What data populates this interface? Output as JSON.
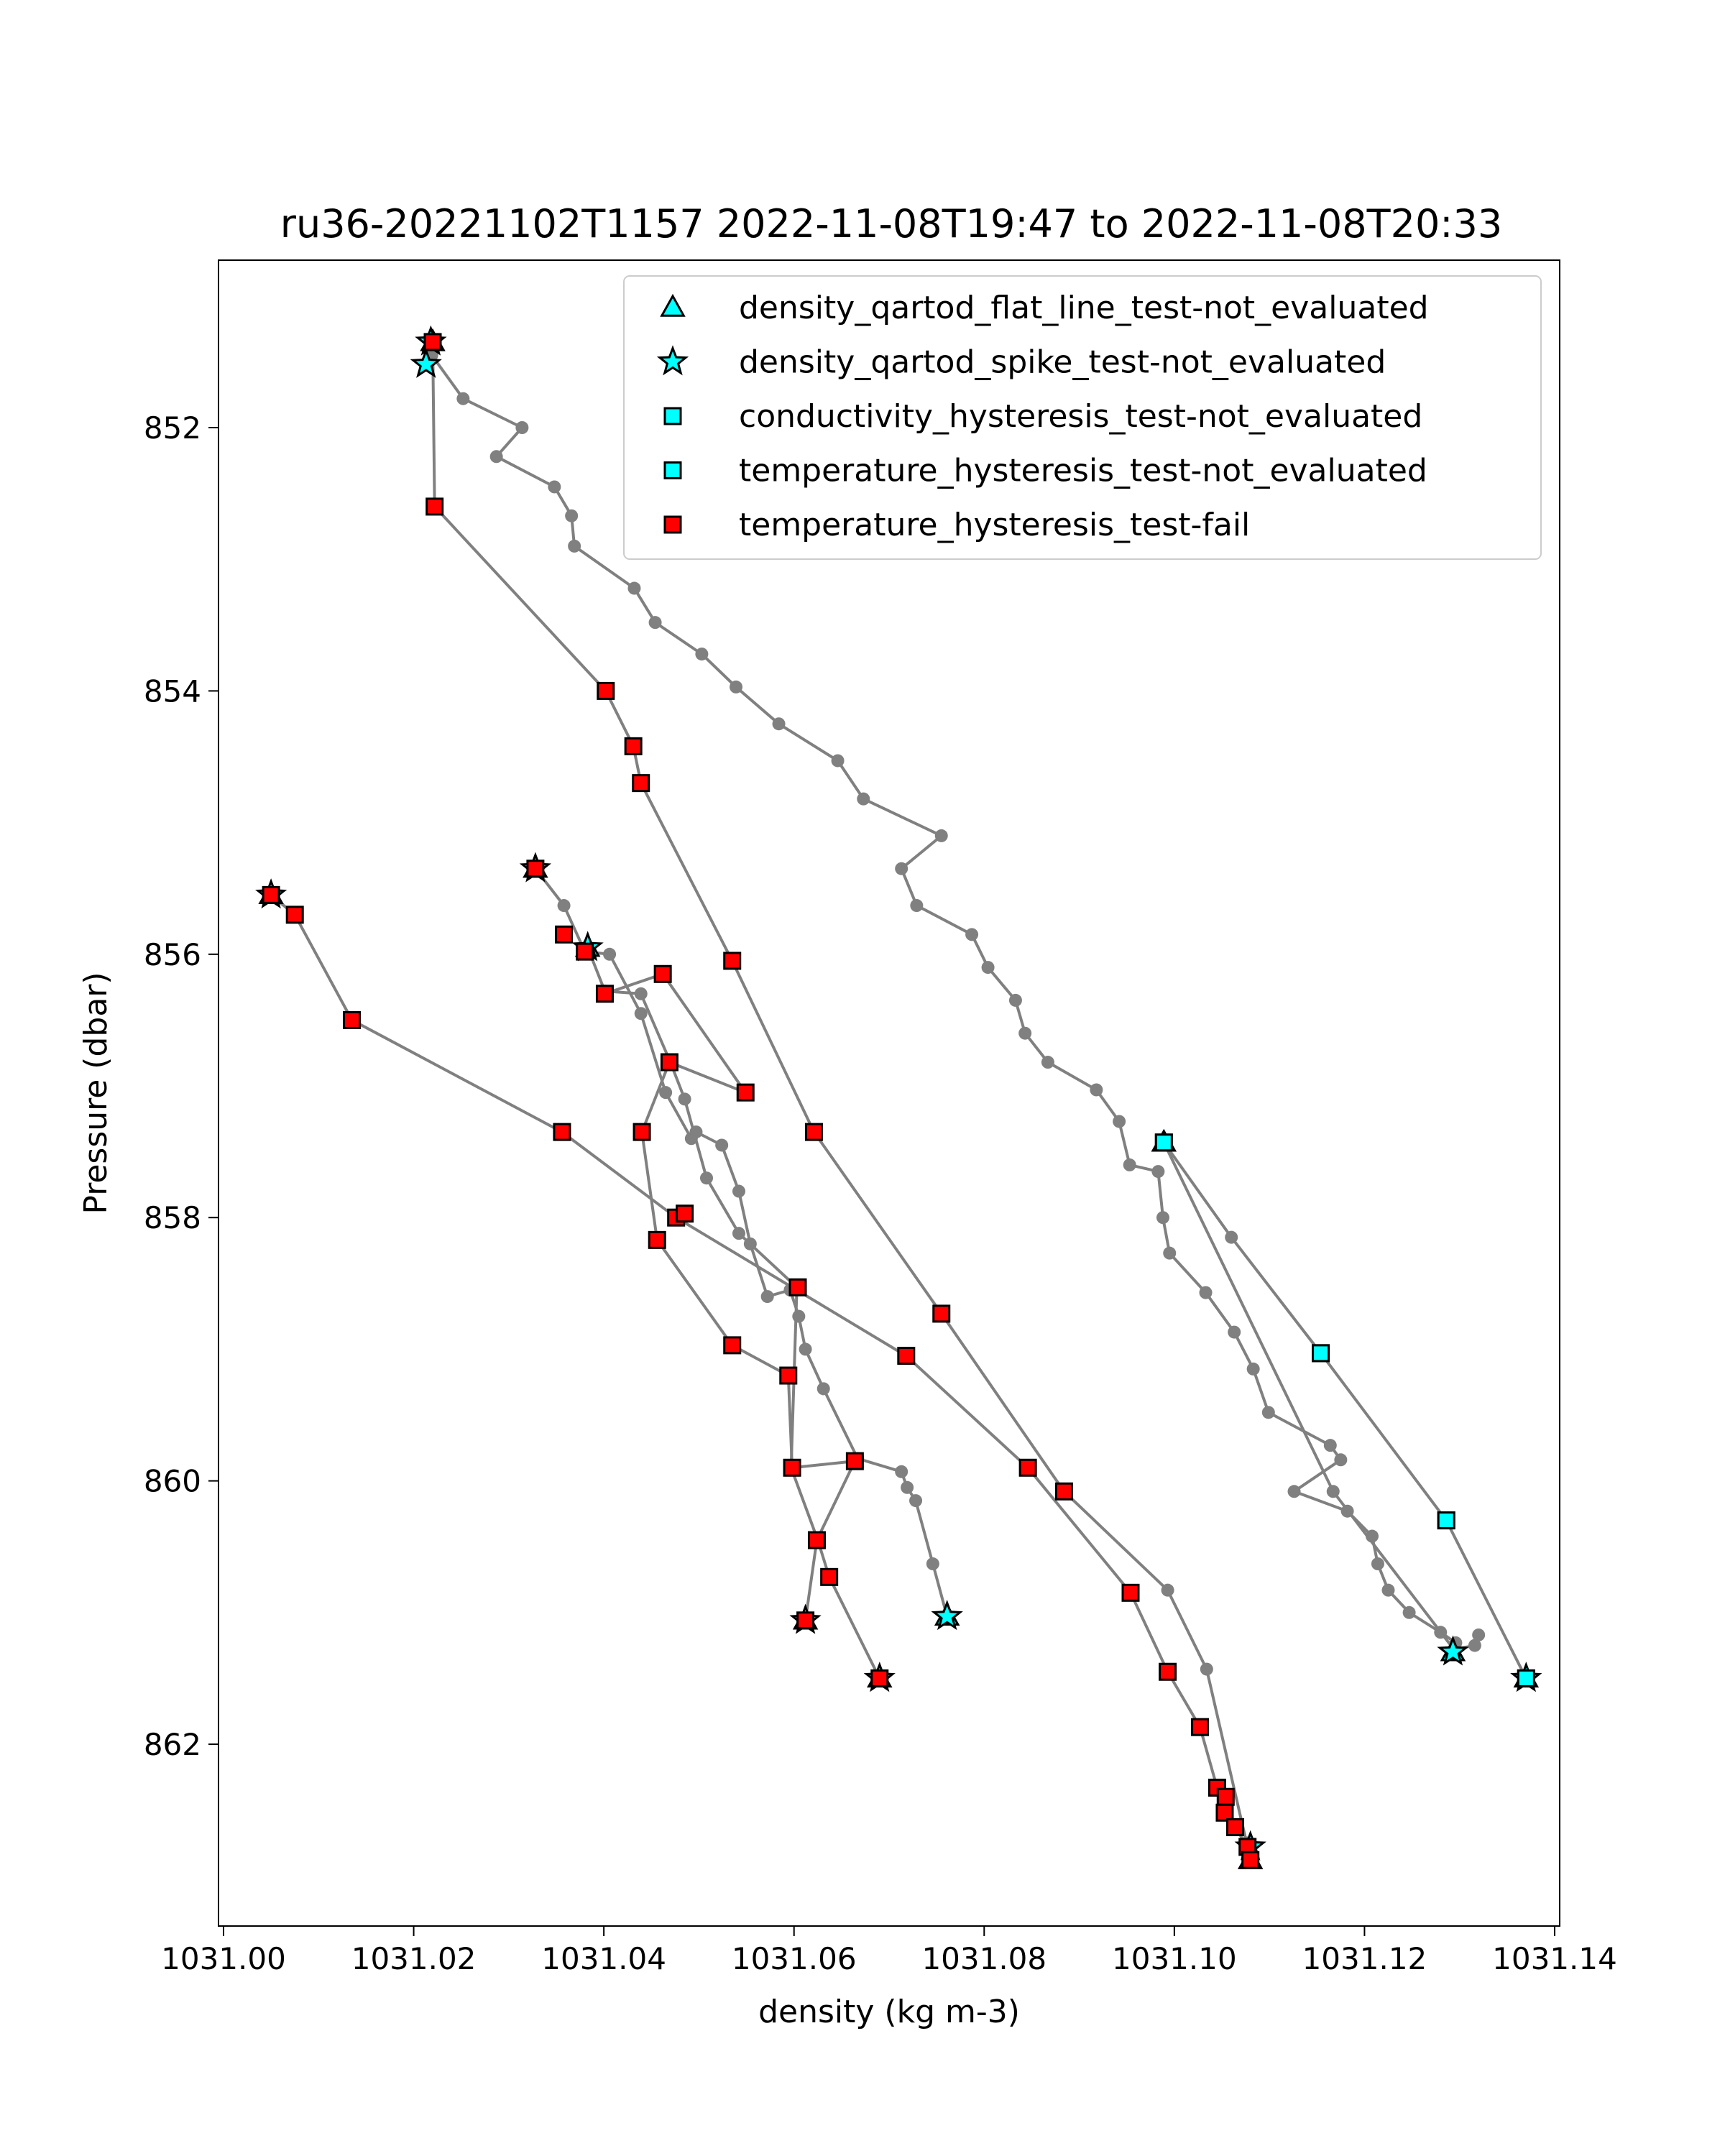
{
  "chart_data": {
    "type": "scatter",
    "title": "ru36-20221102T1157 2022-11-08T19:47 to 2022-11-08T20:33",
    "xlabel": "density (kg m-3)",
    "ylabel": "Pressure (dbar)",
    "xlim": [
      1031.0,
      1031.145
    ],
    "ylim": [
      863.5,
      850.7
    ],
    "y_inverted": true,
    "grid": false,
    "legend_placement": "top-right",
    "x_ticks": [
      {
        "value": 1031.0,
        "label": "1031.00"
      },
      {
        "value": 1031.02,
        "label": "1031.02"
      },
      {
        "value": 1031.04,
        "label": "1031.04"
      },
      {
        "value": 1031.06,
        "label": "1031.06"
      },
      {
        "value": 1031.08,
        "label": "1031.08"
      },
      {
        "value": 1031.1,
        "label": "1031.10"
      },
      {
        "value": 1031.12,
        "label": "1031.12"
      },
      {
        "value": 1031.14,
        "label": "1031.14"
      }
    ],
    "y_ticks": [
      {
        "value": 852,
        "label": "852"
      },
      {
        "value": 854,
        "label": "854"
      },
      {
        "value": 856,
        "label": "856"
      },
      {
        "value": 858,
        "label": "858"
      },
      {
        "value": 860,
        "label": "860"
      },
      {
        "value": 862,
        "label": "862"
      }
    ],
    "profile_line_color": "#808080",
    "profiles": [
      {
        "x": [
          1031.0761,
          1031.0746,
          1031.0728,
          1031.0719,
          1031.0713,
          1031.0667,
          1031.0631,
          1031.0612,
          1031.0605,
          1031.0596,
          1031.0572,
          1031.0554,
          1031.0542,
          1031.0524,
          1031.0497,
          1031.0492,
          1031.0465,
          1031.0439,
          1031.0406,
          1031.038,
          1031.0358,
          1031.0328
        ],
        "y": [
          861.03,
          860.63,
          860.15,
          860.05,
          859.93,
          859.83,
          859.3,
          859.0,
          858.75,
          858.55,
          858.6,
          858.2,
          857.8,
          857.45,
          857.35,
          857.4,
          857.05,
          856.45,
          856.0,
          855.98,
          855.63,
          855.35
        ]
      },
      {
        "x": [
          1031.069,
          1031.0637,
          1031.0625,
          1031.0597,
          1031.0603,
          1031.0542,
          1031.0508,
          1031.0485,
          1031.047,
          1031.0439,
          1031.0401,
          1031.0383
        ],
        "y": [
          861.5,
          860.73,
          860.45,
          859.9,
          858.53,
          858.12,
          857.7,
          857.1,
          856.82,
          856.3,
          856.28,
          855.95
        ]
      },
      {
        "x": [
          1031.0612,
          1031.0624,
          1031.0664,
          1031.0598,
          1031.0594,
          1031.0535,
          1031.0456,
          1031.044,
          1031.0469,
          1031.0549,
          1031.0462,
          1031.0401
        ],
        "y": [
          861.06,
          860.45,
          859.85,
          859.9,
          859.2,
          858.97,
          858.17,
          857.35,
          856.82,
          857.05,
          856.15,
          856.3
        ]
      },
      {
        "x": [
          1031.005,
          1031.0075,
          1031.0135,
          1031.0356,
          1031.0476,
          1031.0718,
          1031.0846,
          1031.0954,
          1031.0993,
          1031.1027,
          1031.1045,
          1031.1054,
          1031.1053,
          1031.1064,
          1031.1077,
          1031.108,
          1031.108
        ],
        "y": [
          855.55,
          855.7,
          856.5,
          857.35,
          858.0,
          859.05,
          859.9,
          860.85,
          861.45,
          861.87,
          862.33,
          862.4,
          862.52,
          862.63,
          862.78,
          862.83,
          862.88
        ]
      },
      {
        "x": [
          1031.0218,
          1031.0213,
          1031.0219,
          1031.0252,
          1031.0314,
          1031.0287,
          1031.0348,
          1031.0366,
          1031.0369,
          1031.0432,
          1031.0454,
          1031.0503,
          1031.0539,
          1031.0584,
          1031.0646,
          1031.0673,
          1031.0755,
          1031.0713,
          1031.0729,
          1031.0787,
          1031.0804,
          1031.0833,
          1031.0843,
          1031.0867,
          1031.0918,
          1031.0942,
          1031.0953,
          1031.0983,
          1031.0988,
          1031.0995,
          1031.1033,
          1031.1063,
          1031.1083,
          1031.1099,
          1031.1164,
          1031.1175,
          1031.1126,
          1031.1182,
          1031.1208,
          1031.1214,
          1031.1225,
          1031.1247,
          1031.128,
          1031.1296,
          1031.1293
        ],
        "y": [
          851.35,
          851.52,
          851.45,
          851.78,
          852.0,
          852.22,
          852.45,
          852.67,
          852.9,
          853.22,
          853.48,
          853.72,
          853.97,
          854.25,
          854.53,
          854.82,
          855.1,
          855.35,
          855.63,
          855.85,
          856.1,
          856.35,
          856.6,
          856.82,
          857.03,
          857.27,
          857.6,
          857.65,
          858.0,
          858.27,
          858.57,
          858.87,
          859.15,
          859.48,
          859.73,
          859.84,
          860.08,
          860.23,
          860.42,
          860.63,
          860.83,
          861.0,
          861.15,
          861.23,
          861.3
        ]
      },
      {
        "x": [
          1031.0222,
          1031.0402,
          1031.0431,
          1031.0439,
          1031.0535,
          1031.0621,
          1031.0755,
          1031.0884,
          1031.0993,
          1031.1034,
          1031.1076,
          1031.108
        ],
        "y": [
          852.6,
          854.0,
          854.42,
          854.7,
          856.05,
          857.35,
          858.73,
          860.08,
          860.83,
          861.43,
          862.75,
          862.88
        ]
      },
      {
        "x": [
          1031.022,
          1031.0222
        ],
        "y": [
          851.35,
          852.6
        ]
      },
      {
        "x": [
          1031.0989,
          1031.106,
          1031.1154,
          1031.1286,
          1031.137
        ],
        "y": [
          857.43,
          858.15,
          859.03,
          860.3,
          861.5
        ]
      },
      {
        "x": [
          1031.0989,
          1031.1167,
          1031.1294,
          1031.1316,
          1031.132
        ],
        "y": [
          857.43,
          860.08,
          861.28,
          861.25,
          861.17
        ]
      }
    ],
    "legend": [
      {
        "label": "density_qartod_flat_line_test-not_evaluated",
        "marker": "triangle",
        "color": "#00ffff"
      },
      {
        "label": "density_qartod_spike_test-not_evaluated",
        "marker": "star",
        "color": "#00ffff"
      },
      {
        "label": "conductivity_hysteresis_test-not_evaluated",
        "marker": "square",
        "color": "#00ffff"
      },
      {
        "label": "temperature_hysteresis_test-not_evaluated",
        "marker": "square",
        "color": "#00ffff"
      },
      {
        "label": "temperature_hysteresis_test-fail",
        "marker": "square",
        "color": "#ff0000"
      }
    ],
    "series": [
      {
        "name": "density_qartod_flat_line_test-not_evaluated",
        "marker": "triangle",
        "color": "#00ffff",
        "points": [
          [
            1031.022,
            851.35
          ],
          [
            1031.005,
            855.55
          ],
          [
            1031.0328,
            855.35
          ],
          [
            1031.0383,
            855.95
          ],
          [
            1031.0989,
            857.43
          ],
          [
            1031.0612,
            861.06
          ],
          [
            1031.069,
            861.5
          ],
          [
            1031.0761,
            861.03
          ],
          [
            1031.1293,
            861.3
          ],
          [
            1031.137,
            861.5
          ],
          [
            1031.108,
            862.88
          ]
        ]
      },
      {
        "name": "density_qartod_spike_test-not_evaluated",
        "marker": "star",
        "color": "#00ffff",
        "points": [
          [
            1031.0218,
            851.35
          ],
          [
            1031.0213,
            851.52
          ],
          [
            1031.005,
            855.55
          ],
          [
            1031.0328,
            855.35
          ],
          [
            1031.0383,
            855.95
          ],
          [
            1031.0612,
            861.06
          ],
          [
            1031.069,
            861.5
          ],
          [
            1031.0761,
            861.03
          ],
          [
            1031.1293,
            861.3
          ],
          [
            1031.137,
            861.5
          ],
          [
            1031.108,
            862.78
          ]
        ]
      },
      {
        "name": "conductivity_hysteresis_test-not_evaluated",
        "marker": "square",
        "color": "#00ffff",
        "points": [
          [
            1031.0989,
            857.43
          ],
          [
            1031.1154,
            859.03
          ],
          [
            1031.1286,
            860.3
          ],
          [
            1031.137,
            861.5
          ]
        ]
      },
      {
        "name": "temperature_hysteresis_test-not_evaluated",
        "marker": "square",
        "color": "#00ffff",
        "points": [
          [
            1031.0989,
            857.43
          ],
          [
            1031.1154,
            859.03
          ],
          [
            1031.1286,
            860.3
          ],
          [
            1031.137,
            861.5
          ]
        ]
      },
      {
        "name": "temperature_hysteresis_test-fail",
        "marker": "square",
        "color": "#ff0000",
        "points": [
          [
            1031.022,
            851.35
          ],
          [
            1031.0222,
            852.6
          ],
          [
            1031.0402,
            854.0
          ],
          [
            1031.0431,
            854.42
          ],
          [
            1031.0439,
            854.7
          ],
          [
            1031.0535,
            856.05
          ],
          [
            1031.0621,
            857.35
          ],
          [
            1031.0755,
            858.73
          ],
          [
            1031.0884,
            860.08
          ],
          [
            1031.0954,
            860.85
          ],
          [
            1031.0993,
            861.45
          ],
          [
            1031.1027,
            861.87
          ],
          [
            1031.1045,
            862.33
          ],
          [
            1031.1054,
            862.4
          ],
          [
            1031.1053,
            862.52
          ],
          [
            1031.1064,
            862.63
          ],
          [
            1031.1077,
            862.78
          ],
          [
            1031.108,
            862.88
          ],
          [
            1031.005,
            855.55
          ],
          [
            1031.0075,
            855.7
          ],
          [
            1031.0135,
            856.5
          ],
          [
            1031.0356,
            857.35
          ],
          [
            1031.0476,
            858.0
          ],
          [
            1031.0718,
            859.05
          ],
          [
            1031.0846,
            859.9
          ],
          [
            1031.0328,
            855.35
          ],
          [
            1031.0358,
            855.85
          ],
          [
            1031.038,
            855.98
          ],
          [
            1031.0401,
            856.3
          ],
          [
            1031.0462,
            856.15
          ],
          [
            1031.0469,
            856.82
          ],
          [
            1031.0549,
            857.05
          ],
          [
            1031.044,
            857.35
          ],
          [
            1031.0456,
            858.17
          ],
          [
            1031.0485,
            857.97
          ],
          [
            1031.0535,
            858.97
          ],
          [
            1031.0594,
            859.2
          ],
          [
            1031.0598,
            859.9
          ],
          [
            1031.0604,
            858.53
          ],
          [
            1031.0664,
            859.85
          ],
          [
            1031.0624,
            860.45
          ],
          [
            1031.0637,
            860.73
          ],
          [
            1031.0612,
            861.06
          ],
          [
            1031.069,
            861.5
          ]
        ]
      }
    ]
  }
}
